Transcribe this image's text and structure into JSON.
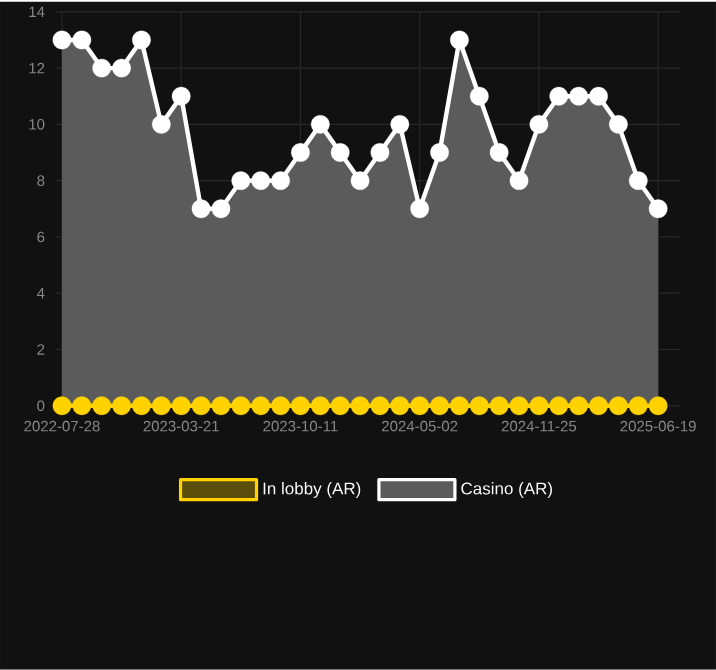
{
  "chart_data": {
    "type": "area",
    "categories": [
      "2022-07-28",
      null,
      null,
      null,
      null,
      null,
      "2023-03-21",
      null,
      null,
      null,
      null,
      null,
      "2023-10-11",
      null,
      null,
      null,
      null,
      null,
      "2024-05-02",
      null,
      null,
      null,
      null,
      null,
      "2024-11-25",
      null,
      null,
      null,
      null,
      null,
      "2025-06-19"
    ],
    "ylim": [
      0,
      14
    ],
    "yticks": [
      0,
      2,
      4,
      6,
      8,
      10,
      12,
      14
    ],
    "grid": true,
    "legend": "bottom",
    "marker": "circle",
    "series": [
      {
        "name": "In lobby (AR)",
        "type": "line",
        "color": "#ffd200",
        "values": [
          0,
          0,
          0,
          0,
          0,
          0,
          0,
          0,
          0,
          0,
          0,
          0,
          0,
          0,
          0,
          0,
          0,
          0,
          0,
          0,
          0,
          0,
          0,
          0,
          0,
          0,
          0,
          0,
          0,
          0,
          0
        ]
      },
      {
        "name": "Casino (AR)",
        "color": "#ffffff",
        "values": [
          13,
          13,
          12,
          12,
          13,
          10,
          11,
          7,
          7,
          8,
          8,
          8,
          9,
          10,
          9,
          8,
          9,
          10,
          7,
          9,
          13,
          11,
          9,
          8,
          10,
          11,
          11,
          11,
          10,
          8,
          7
        ]
      }
    ]
  }
}
